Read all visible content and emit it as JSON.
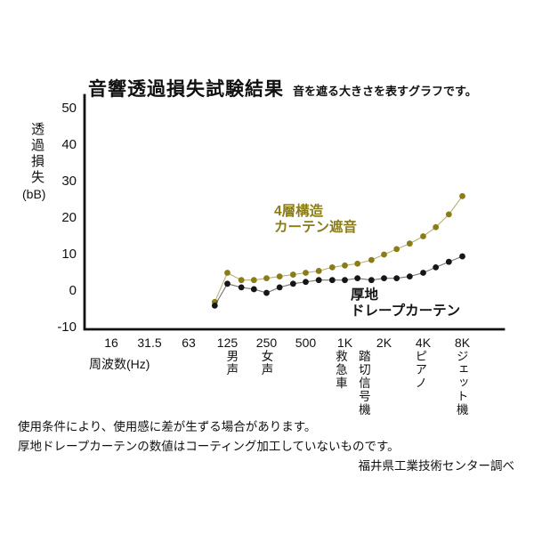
{
  "page": {
    "notes": [
      "使用条件により、使用感に差が生ずる場合があります。",
      "厚地ドレープカーテンの数値はコーティング加工していないものです。"
    ],
    "credit": "福井県工業技術センター調べ"
  },
  "chart_data": {
    "type": "line",
    "title": "音響透過損失試験結果",
    "subtitle": "音を遮る大きさを表すグラフです。",
    "xlabel": "周波数(Hz)",
    "ylabel": "透過損失",
    "ylabel_unit": "(bB)",
    "x_scale": "log2-octave",
    "grid": false,
    "ylim": [
      -10,
      50
    ],
    "y_ticks": [
      50,
      40,
      30,
      20,
      10,
      0,
      -10
    ],
    "x_tick_labels": [
      "16",
      "31.5",
      "63",
      "125",
      "250",
      "500",
      "1K",
      "2K",
      "4K",
      "8K"
    ],
    "x_tick_freqs": [
      16,
      31.5,
      63,
      125,
      250,
      500,
      1000,
      2000,
      4000,
      8000
    ],
    "x_freq_hz": [
      100,
      125,
      160,
      200,
      250,
      315,
      400,
      500,
      630,
      800,
      1000,
      1250,
      1600,
      2000,
      2500,
      3150,
      4000,
      5000,
      6300,
      8000
    ],
    "series": [
      {
        "name": "4層構造カーテン遮音",
        "legend_lines": [
          "4層構造",
          "カーテン遮音"
        ],
        "color": "#8a7c17",
        "values": [
          -3,
          5,
          3,
          3,
          3.5,
          4,
          4.5,
          5,
          5.5,
          6.5,
          7,
          7.5,
          8.5,
          10,
          11.5,
          13,
          15,
          17.5,
          21,
          26
        ]
      },
      {
        "name": "厚地ドレープカーテン",
        "legend_lines": [
          "厚地",
          "ドレープカーテン"
        ],
        "color": "#161616",
        "values": [
          -4,
          2,
          1,
          0.5,
          -0.5,
          1,
          2,
          2.5,
          3,
          3,
          3,
          3.5,
          3,
          3.5,
          3.5,
          4,
          5,
          6.5,
          8,
          9.5
        ]
      }
    ],
    "sound_annotations": [
      {
        "label": "男声",
        "freq": 135
      },
      {
        "label": "女声",
        "freq": 250
      },
      {
        "label": "救急車",
        "freq": 930
      },
      {
        "label": "踏切信号機",
        "freq": 1400
      },
      {
        "label": "ピアノ",
        "freq": 3800
      },
      {
        "label": "ジェット機",
        "freq": 7900
      }
    ]
  }
}
